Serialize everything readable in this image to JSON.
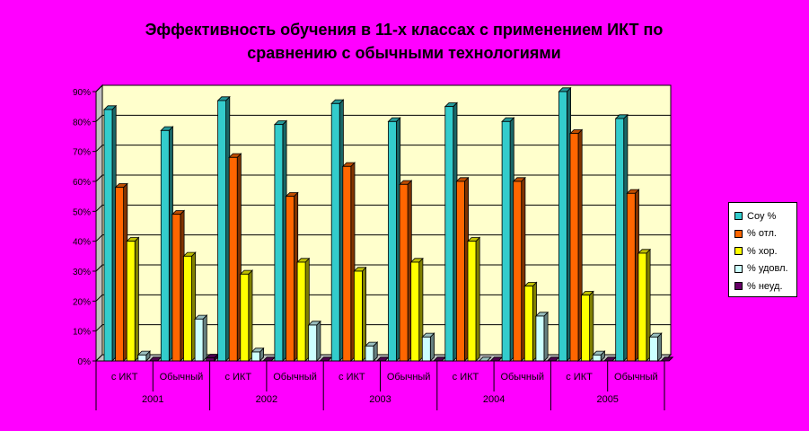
{
  "chart_data": {
    "type": "bar",
    "title_line1": "Эффективность обучения в 11-х классах с применением ИКТ по",
    "title_line2": "сравнению с обычными технологиями",
    "y_ticks": [
      "0%",
      "10%",
      "20%",
      "30%",
      "40%",
      "50%",
      "60%",
      "70%",
      "80%",
      "90%"
    ],
    "ylim": [
      0,
      90
    ],
    "grid": true,
    "legend_position": "right",
    "categories": [
      "с ИКТ",
      "Обычный",
      "с ИКТ",
      "Обычный",
      "с ИКТ",
      "Обычный",
      "с ИКТ",
      "Обычный",
      "с ИКТ",
      "Обычный"
    ],
    "groups": [
      "2001",
      "2002",
      "2003",
      "2004",
      "2005"
    ],
    "series": [
      {
        "name": "Соу %",
        "color": "#33cccc",
        "values": [
          84,
          77,
          87,
          79,
          86,
          80,
          85,
          80,
          90,
          81
        ]
      },
      {
        "name": "% отл.",
        "color": "#ff6600",
        "values": [
          58,
          49,
          68,
          55,
          65,
          59,
          60,
          60,
          76,
          56
        ]
      },
      {
        "name": "% хор.",
        "color": "#ffff00",
        "values": [
          40,
          35,
          29,
          33,
          30,
          33,
          40,
          25,
          22,
          36
        ]
      },
      {
        "name": "% удовл.",
        "color": "#ccffff",
        "values": [
          2,
          14,
          3,
          12,
          5,
          8,
          0,
          15,
          2,
          8
        ]
      },
      {
        "name": "% неуд.",
        "color": "#660066",
        "values": [
          0,
          1,
          0,
          0,
          0,
          0,
          0,
          0,
          0,
          0
        ]
      }
    ]
  }
}
